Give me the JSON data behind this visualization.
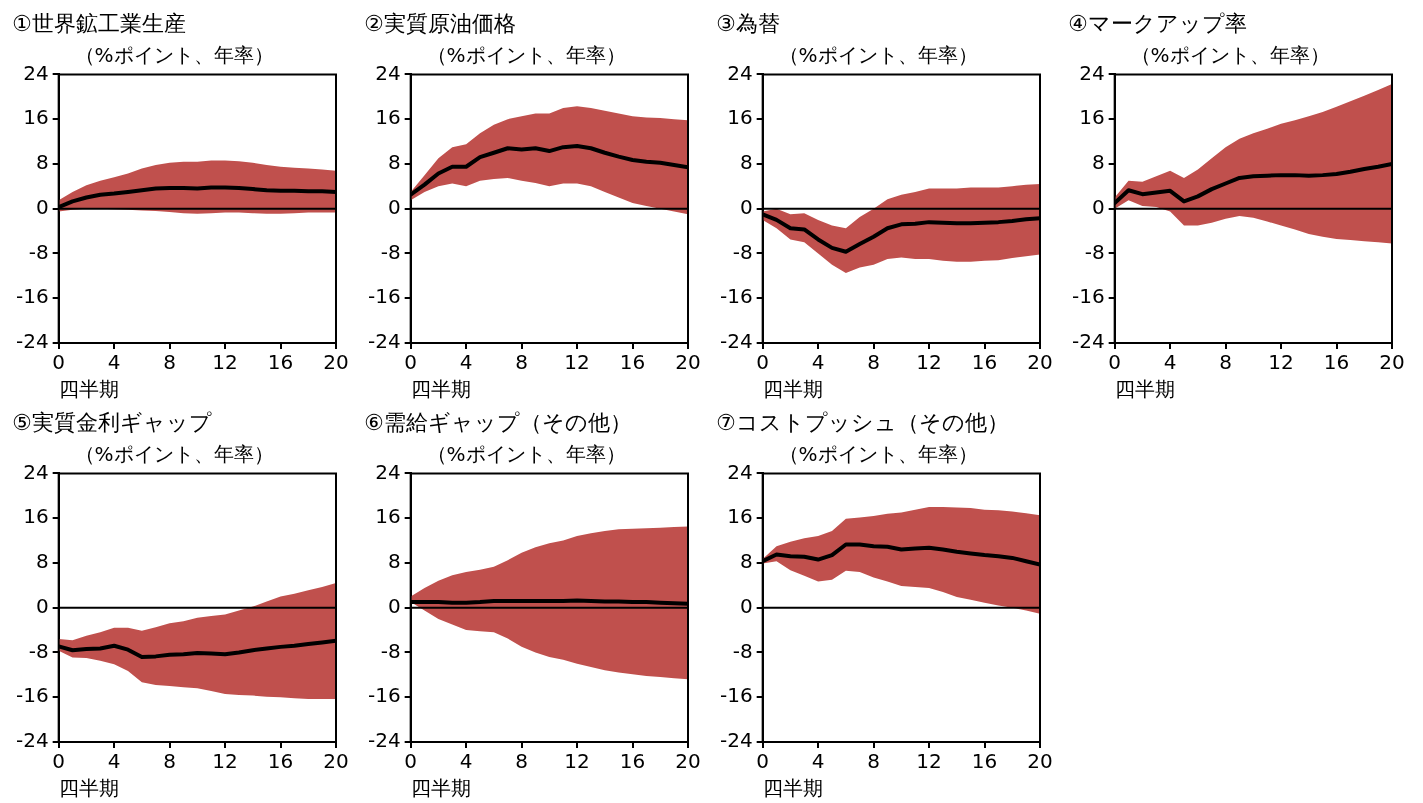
{
  "chart_data": [
    {
      "type": "line",
      "title": "①世界鉱工業生産",
      "subtitle": "（%ポイント、年率）",
      "xlabel": "四半期",
      "x": [
        0,
        1,
        2,
        3,
        4,
        5,
        6,
        7,
        8,
        9,
        10,
        11,
        12,
        13,
        14,
        15,
        16,
        17,
        18,
        19,
        20
      ],
      "xlim": [
        0,
        20
      ],
      "xticks": [
        0,
        4,
        8,
        12,
        16,
        20
      ],
      "ylim": [
        -24,
        24
      ],
      "yticks": [
        -24,
        -16,
        -8,
        0,
        8,
        16,
        24
      ],
      "grid": false,
      "legend": false,
      "ref_lines": [
        {
          "axis": "y",
          "value": 0,
          "color": "#000000"
        }
      ],
      "series": [
        {
          "color": "#000000",
          "values": [
            0.3,
            1.3,
            2.0,
            2.5,
            2.7,
            3.0,
            3.3,
            3.6,
            3.7,
            3.7,
            3.6,
            3.8,
            3.8,
            3.7,
            3.5,
            3.3,
            3.2,
            3.2,
            3.1,
            3.1,
            3.0
          ],
          "lower": [
            -0.5,
            -0.2,
            0,
            0,
            -0.1,
            -0.2,
            -0.3,
            -0.4,
            -0.6,
            -0.8,
            -0.9,
            -0.8,
            -0.7,
            -0.7,
            -0.8,
            -0.9,
            -0.9,
            -0.8,
            -0.7,
            -0.7,
            -0.7
          ],
          "upper": [
            1.5,
            3,
            4.2,
            5,
            5.6,
            6.3,
            7.2,
            7.8,
            8.2,
            8.4,
            8.4,
            8.6,
            8.6,
            8.5,
            8.2,
            7.8,
            7.5,
            7.3,
            7.2,
            7.0,
            6.8
          ]
        }
      ]
    },
    {
      "type": "line",
      "title": "②実質原油価格",
      "subtitle": "（%ポイント、年率）",
      "xlabel": "四半期",
      "x": [
        0,
        1,
        2,
        3,
        4,
        5,
        6,
        7,
        8,
        9,
        10,
        11,
        12,
        13,
        14,
        15,
        16,
        17,
        18,
        19,
        20
      ],
      "xlim": [
        0,
        20
      ],
      "xticks": [
        0,
        4,
        8,
        12,
        16,
        20
      ],
      "ylim": [
        -24,
        24
      ],
      "yticks": [
        -24,
        -16,
        -8,
        0,
        8,
        16,
        24
      ],
      "grid": false,
      "legend": false,
      "ref_lines": [
        {
          "axis": "y",
          "value": 0,
          "color": "#000000"
        }
      ],
      "series": [
        {
          "color": "#000000",
          "values": [
            2.5,
            4.3,
            6.3,
            7.5,
            7.5,
            9.2,
            10.0,
            10.8,
            10.6,
            10.8,
            10.3,
            11.0,
            11.2,
            10.8,
            10.0,
            9.3,
            8.7,
            8.4,
            8.2,
            7.8,
            7.4
          ],
          "lower": [
            1.5,
            3,
            4,
            4.5,
            4,
            5,
            5.3,
            5.5,
            5,
            4.6,
            4.0,
            4.5,
            4.5,
            4.0,
            3,
            2,
            1.0,
            0.5,
            0,
            -0.5,
            -1
          ],
          "upper": [
            3,
            6,
            9,
            11,
            11.5,
            13.5,
            15,
            16,
            16.5,
            17,
            17,
            18,
            18.3,
            18,
            17.5,
            17,
            16.5,
            16.3,
            16.2,
            16,
            15.8
          ]
        }
      ]
    },
    {
      "type": "line",
      "title": "③為替",
      "subtitle": "（%ポイント、年率）",
      "xlabel": "四半期",
      "x": [
        0,
        1,
        2,
        3,
        4,
        5,
        6,
        7,
        8,
        9,
        10,
        11,
        12,
        13,
        14,
        15,
        16,
        17,
        18,
        19,
        20
      ],
      "xlim": [
        0,
        20
      ],
      "xticks": [
        0,
        4,
        8,
        12,
        16,
        20
      ],
      "ylim": [
        -24,
        24
      ],
      "yticks": [
        -24,
        -16,
        -8,
        0,
        8,
        16,
        24
      ],
      "grid": false,
      "legend": false,
      "ref_lines": [
        {
          "axis": "y",
          "value": 0,
          "color": "#000000"
        }
      ],
      "series": [
        {
          "color": "#000000",
          "values": [
            -1,
            -2,
            -3.5,
            -3.7,
            -5.5,
            -7,
            -7.7,
            -6.3,
            -5,
            -3.5,
            -2.8,
            -2.7,
            -2.4,
            -2.5,
            -2.6,
            -2.6,
            -2.5,
            -2.4,
            -2.2,
            -1.9,
            -1.7
          ],
          "lower": [
            -2,
            -3.5,
            -5.5,
            -6,
            -8,
            -10,
            -11.5,
            -10.5,
            -10,
            -9,
            -8.7,
            -9,
            -9,
            -9.3,
            -9.5,
            -9.5,
            -9.3,
            -9.2,
            -8.8,
            -8.5,
            -8.2
          ],
          "upper": [
            -0.5,
            0,
            -1,
            -0.8,
            -2,
            -3,
            -3.5,
            -1.5,
            0,
            1.7,
            2.5,
            3,
            3.6,
            3.6,
            3.6,
            3.8,
            3.8,
            3.8,
            4,
            4.3,
            4.4
          ]
        }
      ]
    },
    {
      "type": "line",
      "title": "④マークアップ率",
      "subtitle": "（%ポイント、年率）",
      "xlabel": "四半期",
      "x": [
        0,
        1,
        2,
        3,
        4,
        5,
        6,
        7,
        8,
        9,
        10,
        11,
        12,
        13,
        14,
        15,
        16,
        17,
        18,
        19,
        20
      ],
      "xlim": [
        0,
        20
      ],
      "xticks": [
        0,
        4,
        8,
        12,
        16,
        20
      ],
      "ylim": [
        -24,
        24
      ],
      "yticks": [
        -24,
        -16,
        -8,
        0,
        8,
        16,
        24
      ],
      "grid": false,
      "legend": false,
      "ref_lines": [
        {
          "axis": "y",
          "value": 0,
          "color": "#000000"
        }
      ],
      "series": [
        {
          "color": "#000000",
          "values": [
            1,
            3.3,
            2.6,
            2.9,
            3.2,
            1.3,
            2.2,
            3.5,
            4.5,
            5.5,
            5.8,
            5.9,
            6,
            6,
            5.9,
            6.0,
            6.2,
            6.6,
            7.1,
            7.5,
            8.0
          ],
          "lower": [
            0,
            1.5,
            0.5,
            0.3,
            -0.5,
            -3,
            -3,
            -2.5,
            -1.8,
            -1.3,
            -1.6,
            -2.3,
            -3,
            -3.7,
            -4.5,
            -5,
            -5.4,
            -5.6,
            -5.8,
            -6,
            -6.2
          ],
          "upper": [
            2,
            5,
            4.8,
            5.8,
            6.8,
            5.5,
            7,
            9,
            11,
            12.5,
            13.5,
            14.3,
            15.2,
            15.8,
            16.5,
            17.3,
            18.2,
            19.2,
            20.2,
            21.2,
            22.3
          ]
        }
      ]
    },
    {
      "type": "line",
      "title": "⑤実質金利ギャップ",
      "subtitle": "（%ポイント、年率）",
      "xlabel": "四半期",
      "x": [
        0,
        1,
        2,
        3,
        4,
        5,
        6,
        7,
        8,
        9,
        10,
        11,
        12,
        13,
        14,
        15,
        16,
        17,
        18,
        19,
        20
      ],
      "xlim": [
        0,
        20
      ],
      "xticks": [
        0,
        4,
        8,
        12,
        16,
        20
      ],
      "ylim": [
        -24,
        24
      ],
      "yticks": [
        -24,
        -16,
        -8,
        0,
        8,
        16,
        24
      ],
      "grid": false,
      "legend": false,
      "ref_lines": [
        {
          "axis": "y",
          "value": 0,
          "color": "#000000"
        }
      ],
      "series": [
        {
          "color": "#000000",
          "values": [
            -6.9,
            -7.6,
            -7.4,
            -7.3,
            -6.8,
            -7.5,
            -8.8,
            -8.7,
            -8.4,
            -8.3,
            -8.1,
            -8.2,
            -8.3,
            -8.0,
            -7.6,
            -7.3,
            -7.0,
            -6.8,
            -6.5,
            -6.2,
            -5.9
          ],
          "lower": [
            -7.7,
            -8.9,
            -9,
            -9.5,
            -10.1,
            -11.3,
            -13.3,
            -13.8,
            -14,
            -14.2,
            -14.4,
            -14.9,
            -15.4,
            -15.6,
            -15.7,
            -15.9,
            -16,
            -16.2,
            -16.3,
            -16.3,
            -16.3
          ],
          "upper": [
            -5.6,
            -5.8,
            -5,
            -4.4,
            -3.6,
            -3.6,
            -4.1,
            -3.5,
            -2.8,
            -2.4,
            -1.8,
            -1.5,
            -1.2,
            -0.5,
            0.2,
            1.1,
            2,
            2.5,
            3.1,
            3.7,
            4.4
          ]
        }
      ]
    },
    {
      "type": "line",
      "title": "⑥需給ギャップ（その他）",
      "subtitle": "（%ポイント、年率）",
      "xlabel": "四半期",
      "x": [
        0,
        1,
        2,
        3,
        4,
        5,
        6,
        7,
        8,
        9,
        10,
        11,
        12,
        13,
        14,
        15,
        16,
        17,
        18,
        19,
        20
      ],
      "xlim": [
        0,
        20
      ],
      "xticks": [
        0,
        4,
        8,
        12,
        16,
        20
      ],
      "ylim": [
        -24,
        24
      ],
      "yticks": [
        -24,
        -16,
        -8,
        0,
        8,
        16,
        24
      ],
      "grid": false,
      "legend": false,
      "ref_lines": [
        {
          "axis": "y",
          "value": 0,
          "color": "#000000"
        }
      ],
      "series": [
        {
          "color": "#000000",
          "values": [
            1,
            1,
            1,
            0.9,
            0.9,
            1,
            1.2,
            1.2,
            1.2,
            1.2,
            1.2,
            1.2,
            1.3,
            1.2,
            1.1,
            1.1,
            1,
            1,
            0.9,
            0.8,
            0.7
          ],
          "lower": [
            1,
            -0.5,
            -2,
            -3,
            -4,
            -4.2,
            -4.4,
            -5.5,
            -7,
            -8,
            -8.8,
            -9.3,
            -10,
            -10.6,
            -11.2,
            -11.6,
            -11.9,
            -12.2,
            -12.4,
            -12.6,
            -12.8
          ],
          "upper": [
            2,
            3.5,
            4.8,
            5.8,
            6.4,
            6.8,
            7.3,
            8.5,
            9.8,
            10.8,
            11.5,
            12,
            12.8,
            13.3,
            13.7,
            14,
            14.1,
            14.2,
            14.3,
            14.4,
            14.5
          ]
        }
      ]
    },
    {
      "type": "line",
      "title": "⑦コストプッシュ（その他）",
      "subtitle": "（%ポイント、年率）",
      "xlabel": "四半期",
      "x": [
        0,
        1,
        2,
        3,
        4,
        5,
        6,
        7,
        8,
        9,
        10,
        11,
        12,
        13,
        14,
        15,
        16,
        17,
        18,
        19,
        20
      ],
      "xlim": [
        0,
        20
      ],
      "xticks": [
        0,
        4,
        8,
        12,
        16,
        20
      ],
      "ylim": [
        -24,
        24
      ],
      "yticks": [
        -24,
        -16,
        -8,
        0,
        8,
        16,
        24
      ],
      "grid": false,
      "legend": false,
      "ref_lines": [
        {
          "axis": "y",
          "value": 0,
          "color": "#000000"
        }
      ],
      "series": [
        {
          "color": "#000000",
          "values": [
            8.3,
            9.5,
            9.2,
            9.1,
            8.6,
            9.4,
            11.3,
            11.3,
            11.0,
            10.9,
            10.4,
            10.6,
            10.7,
            10.4,
            10.0,
            9.7,
            9.4,
            9.2,
            8.9,
            8.3,
            7.7
          ],
          "lower": [
            7.9,
            8.3,
            6.7,
            5.7,
            4.7,
            5,
            6.6,
            6.4,
            5.4,
            4.7,
            3.9,
            3.7,
            3.5,
            2.8,
            1.9,
            1.4,
            0.9,
            0.4,
            0,
            -0.5,
            -1.1
          ],
          "upper": [
            8.7,
            11,
            11.8,
            12.4,
            12.8,
            13.7,
            15.9,
            16.1,
            16.4,
            16.8,
            17,
            17.5,
            18,
            18,
            17.9,
            17.8,
            17.5,
            17.4,
            17.2,
            16.9,
            16.5
          ]
        }
      ]
    }
  ]
}
